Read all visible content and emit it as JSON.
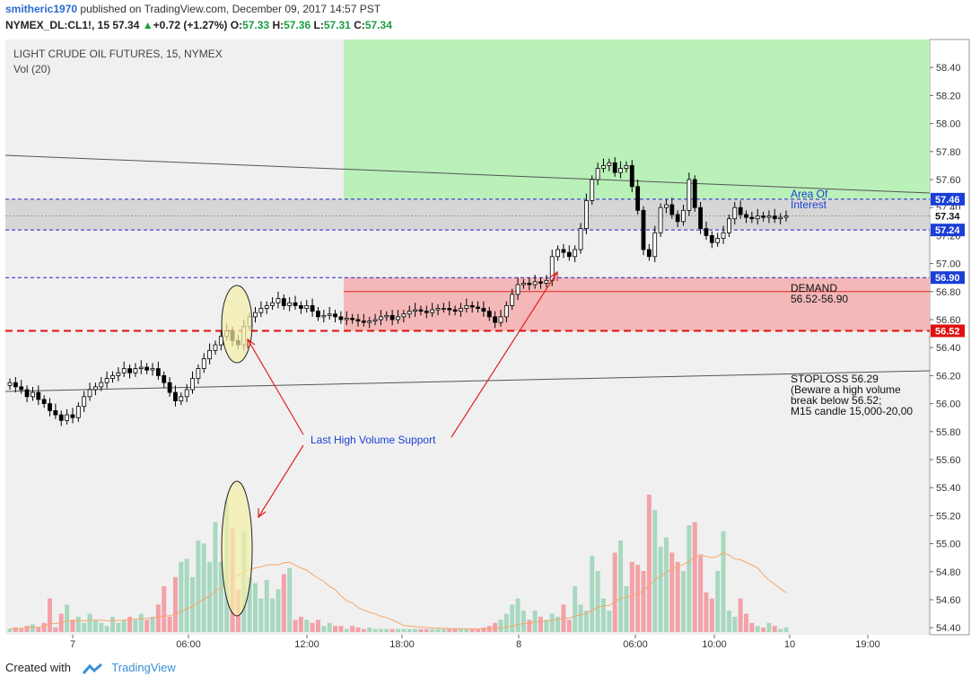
{
  "header": {
    "user": "smitheric1970",
    "published_text": "published on TradingView.com, December 09, 2017 14:57 PST",
    "symbol": "NYMEX_DL:CL1!, 15",
    "last": "57.34",
    "change_arrow": "▲",
    "change": "+0.72 (+1.27%)",
    "open_label": "O:",
    "open": "57.33",
    "high_label": "H:",
    "high": "57.36",
    "low_label": "L:",
    "low": "57.31",
    "close_label": "C:",
    "close": "57.34"
  },
  "chart_data": {
    "type": "candlestick",
    "title": "LIGHT CRUDE OIL FUTURES, 15, NYMEX",
    "subtitle": "Vol (20)",
    "ylim": [
      54.35,
      58.6
    ],
    "y_ticks": [
      "58.40",
      "58.20",
      "58.00",
      "57.80",
      "57.60",
      "57.40",
      "57.20",
      "57.00",
      "56.80",
      "56.60",
      "56.40",
      "56.20",
      "56.00",
      "55.80",
      "55.60",
      "55.40",
      "55.20",
      "55.00",
      "54.80",
      "54.60",
      "54.40"
    ],
    "x_ticks": [
      "7",
      "06:00",
      "12:00",
      "18:00",
      "8",
      "06:00",
      "10:00",
      "10",
      "19:00"
    ],
    "price_labels": {
      "upper": "57.46",
      "last": "57.34",
      "lower": "57.24",
      "demand_top": "56.90",
      "demand_bottom": "56.52"
    },
    "levels": {
      "area_top": 57.46,
      "area_bottom": 57.24,
      "last": 57.34,
      "demand_top": 56.9,
      "demand_mid": 56.8,
      "demand_bottom": 56.52
    },
    "candles_close": [
      56.15,
      56.12,
      56.1,
      56.05,
      56.08,
      56.03,
      56.0,
      55.95,
      55.92,
      55.88,
      55.92,
      55.9,
      55.98,
      56.05,
      56.1,
      56.12,
      56.15,
      56.18,
      56.2,
      56.22,
      56.25,
      56.22,
      56.25,
      56.26,
      56.24,
      56.25,
      56.2,
      56.15,
      56.08,
      56.02,
      56.05,
      56.1,
      56.18,
      56.25,
      56.32,
      56.38,
      56.42,
      56.48,
      56.52,
      56.45,
      56.42,
      56.55,
      56.62,
      56.65,
      56.68,
      56.7,
      56.72,
      56.75,
      56.7,
      56.72,
      56.7,
      56.68,
      56.7,
      56.66,
      56.62,
      56.63,
      56.64,
      56.62,
      56.6,
      56.61,
      56.6,
      56.59,
      56.58,
      56.59,
      56.6,
      56.62,
      56.63,
      56.6,
      56.62,
      56.64,
      56.66,
      56.67,
      56.66,
      56.65,
      56.67,
      56.68,
      56.68,
      56.67,
      56.66,
      56.68,
      56.7,
      56.69,
      56.68,
      56.66,
      56.62,
      56.58,
      56.62,
      56.7,
      56.78,
      56.85,
      56.86,
      56.85,
      56.87,
      56.86,
      56.88,
      57.05,
      57.1,
      57.08,
      57.05,
      57.1,
      57.25,
      57.45,
      57.6,
      57.68,
      57.7,
      57.72,
      57.65,
      57.68,
      57.7,
      57.55,
      57.38,
      57.1,
      57.05,
      57.22,
      57.4,
      57.42,
      57.35,
      57.3,
      57.38,
      57.6,
      57.4,
      57.25,
      57.2,
      57.15,
      57.18,
      57.22,
      57.32,
      57.4,
      57.35,
      57.33,
      57.32,
      57.34,
      57.33,
      57.34,
      57.32,
      57.33,
      57.34
    ],
    "volume": [
      0.02,
      0.03,
      0.02,
      0.04,
      0.05,
      0.03,
      0.06,
      0.22,
      0.03,
      0.12,
      0.18,
      0.08,
      0.1,
      0.06,
      0.12,
      0.08,
      0.06,
      0.04,
      0.1,
      0.06,
      0.08,
      0.1,
      0.08,
      0.12,
      0.08,
      0.1,
      0.18,
      0.3,
      0.1,
      0.36,
      0.46,
      0.48,
      0.36,
      0.6,
      0.58,
      0.46,
      0.72,
      0.46,
      0.86,
      0.68,
      0.28,
      0.66,
      0.36,
      0.32,
      0.22,
      0.34,
      0.22,
      0.28,
      0.38,
      0.42,
      0.08,
      0.1,
      0.08,
      0.06,
      0.08,
      0.04,
      0.06,
      0.04,
      0.04,
      0.02,
      0.04,
      0.03,
      0.02,
      0.03,
      0.02,
      0.02,
      0.02,
      0.02,
      0.02,
      0.02,
      0.02,
      0.02,
      0.02,
      0.02,
      0.02,
      0.02,
      0.02,
      0.02,
      0.02,
      0.02,
      0.02,
      0.02,
      0.02,
      0.03,
      0.04,
      0.06,
      0.08,
      0.12,
      0.18,
      0.22,
      0.14,
      0.08,
      0.14,
      0.1,
      0.08,
      0.12,
      0.1,
      0.18,
      0.08,
      0.3,
      0.18,
      0.14,
      0.5,
      0.4,
      0.22,
      0.14,
      0.52,
      0.6,
      0.3,
      0.46,
      0.44,
      0.4,
      0.9,
      0.8,
      0.56,
      0.62,
      0.52,
      0.46,
      0.4,
      0.7,
      0.72,
      0.5,
      0.26,
      0.22,
      0.4,
      0.66,
      0.14,
      0.1,
      0.22,
      0.12,
      0.06,
      0.04,
      0.03,
      0.06,
      0.04,
      0.02,
      0.03
    ],
    "shaded_zones": [
      {
        "name": "supply-zone",
        "color": "#b9f1b9",
        "y_from": 57.46,
        "y_to": 58.6
      },
      {
        "name": "demand-zone",
        "color": "#f4b8b8",
        "y_from": 56.52,
        "y_to": 56.9
      },
      {
        "name": "area-of-interest",
        "color": "#d0d0d0",
        "y_from": 57.24,
        "y_to": 57.46
      }
    ],
    "annotations": {
      "area_of_interest_line1": "Area Of",
      "area_of_interest_line2": "Interest",
      "demand_line1": "DEMAND",
      "demand_line2": "56.52-56.90",
      "stoploss_line1": "STOPLOSS 56.29",
      "stoploss_line2": "(Beware a high volume",
      "stoploss_line3": "break below 56.52;",
      "stoploss_line4": "M15 candle 15,000-20,00",
      "support_label": "Last High Volume Support"
    },
    "colors": {
      "up_candle": "#ffffff",
      "down_candle": "#000000",
      "vol_up": "#a8d8c0",
      "vol_down": "#f2a2a8",
      "ma": "#f5a66a",
      "levels_dash": "#2020d0",
      "demand_dash": "#e01010",
      "arrow": "#e02020",
      "label_blue": "#1a3fd6",
      "label_red": "#e01010",
      "highlight": "#f5f0a8"
    }
  },
  "footer": {
    "created_with": "Created with",
    "brand": "TradingView"
  }
}
